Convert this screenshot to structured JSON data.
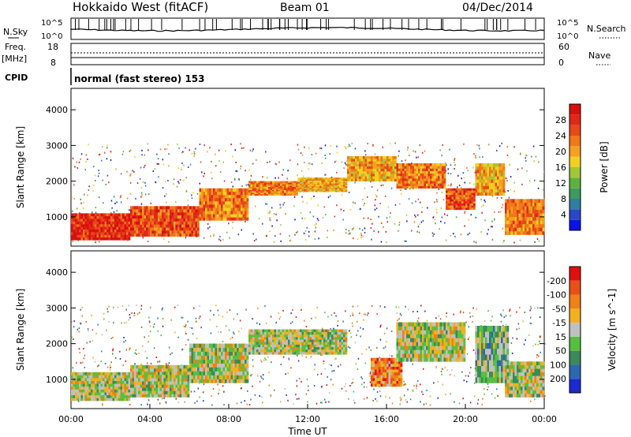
{
  "header": {
    "station": "Hokkaido West (fitACF)",
    "beam": "Beam 01",
    "date": "04/Dec/2014"
  },
  "status_panel": {
    "nsky_label": "N.Sky",
    "nsearch_label": "N.Search",
    "nsky_ticks": [
      "10^5",
      "10^0"
    ],
    "nsky_right_ticks": [
      "10^5",
      "10^0"
    ],
    "freq_label": "Freq.",
    "freq_unit": "[MHz]",
    "freq_ticks": [
      "18",
      "8"
    ],
    "nave_label": "Nave",
    "nave_ticks": [
      "60",
      "0"
    ],
    "cpid_label": "CPID",
    "cpid_value": "normal (fast stereo) 153"
  },
  "chart_data": [
    {
      "type": "heatmap",
      "name": "power",
      "ylabel": "Slant Range [km]",
      "ylim": [
        180,
        4600
      ],
      "yticks": [
        1000,
        2000,
        3000,
        4000
      ],
      "xlim": [
        0,
        24
      ],
      "colorbar": {
        "label": "Power [dB]",
        "ticks": [
          "4",
          "8",
          "12",
          "16",
          "20",
          "24",
          "28"
        ],
        "colors": [
          "#0a14e6",
          "#2a47c8",
          "#2f7fa0",
          "#3f9a5f",
          "#5fb042",
          "#9fc839",
          "#f0d020",
          "#f5a020",
          "#f07818",
          "#e8481a",
          "#e02818",
          "#d80f0f"
        ]
      },
      "bands": [
        {
          "x": [
            0,
            3
          ],
          "r0": 350,
          "r1": 1100,
          "level": 10
        },
        {
          "x": [
            3,
            6.5
          ],
          "r0": 450,
          "r1": 1300,
          "level": 9
        },
        {
          "x": [
            6.5,
            9
          ],
          "r0": 900,
          "r1": 1800,
          "level": 8
        },
        {
          "x": [
            9,
            11.5
          ],
          "r0": 1600,
          "r1": 2000,
          "level": 8
        },
        {
          "x": [
            11.5,
            14
          ],
          "r0": 1700,
          "r1": 2100,
          "level": 7
        },
        {
          "x": [
            14,
            16.5
          ],
          "r0": 2000,
          "r1": 2700,
          "level": 7
        },
        {
          "x": [
            16.5,
            19
          ],
          "r0": 1800,
          "r1": 2500,
          "level": 8
        },
        {
          "x": [
            19,
            20.5
          ],
          "r0": 1200,
          "r1": 1800,
          "level": 9
        },
        {
          "x": [
            20.5,
            22
          ],
          "r0": 1600,
          "r1": 2500,
          "level": 7
        },
        {
          "x": [
            22,
            24
          ],
          "r0": 500,
          "r1": 1500,
          "level": 8
        }
      ]
    },
    {
      "type": "heatmap",
      "name": "velocity",
      "ylabel": "Slant Range [km]",
      "xlabel": "Time UT",
      "ylim": [
        180,
        4600
      ],
      "yticks": [
        1000,
        2000,
        3000,
        4000
      ],
      "xlim": [
        0,
        24
      ],
      "xticks": [
        "00:00",
        "04:00",
        "08:00",
        "12:00",
        "16:00",
        "20:00",
        "00:00"
      ],
      "colorbar": {
        "label": "Velocity [m s^-1]",
        "ticks": [
          "200",
          "100",
          "50",
          "15",
          "-15",
          "-50",
          "-100",
          "-200"
        ],
        "colors": [
          "#1a2ad0",
          "#2f66b0",
          "#3a8a5a",
          "#55c040",
          "#c0c0c0",
          "#f0b020",
          "#f08018",
          "#e85018",
          "#e01010"
        ]
      },
      "bands": [
        {
          "x": [
            0,
            3
          ],
          "r0": 400,
          "r1": 1200,
          "level": 4
        },
        {
          "x": [
            3,
            6
          ],
          "r0": 500,
          "r1": 1400,
          "level": 4
        },
        {
          "x": [
            6,
            9
          ],
          "r0": 900,
          "r1": 2000,
          "level": 4
        },
        {
          "x": [
            9,
            14
          ],
          "r0": 1700,
          "r1": 2400,
          "level": 4
        },
        {
          "x": [
            15.2,
            16.8
          ],
          "r0": 800,
          "r1": 1600,
          "level": 6
        },
        {
          "x": [
            16.5,
            20
          ],
          "r0": 1500,
          "r1": 2600,
          "level": 4
        },
        {
          "x": [
            20.5,
            22.2
          ],
          "r0": 900,
          "r1": 2500,
          "level": 3
        },
        {
          "x": [
            22,
            24
          ],
          "r0": 500,
          "r1": 1500,
          "level": 4
        }
      ]
    }
  ]
}
